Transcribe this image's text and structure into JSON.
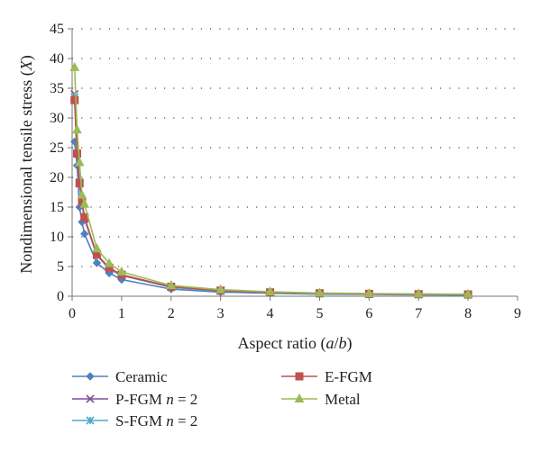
{
  "chart_data": {
    "type": "line",
    "xlabel": "Aspect ratio (a/b)",
    "ylabel": "Nondimensional tensile stress (X)",
    "xlim": [
      0,
      9
    ],
    "ylim": [
      0,
      45
    ],
    "xticks": [
      0,
      1,
      2,
      3,
      4,
      5,
      6,
      7,
      8,
      9
    ],
    "yticks": [
      0,
      5,
      10,
      15,
      20,
      25,
      30,
      35,
      40,
      45
    ],
    "grid": "horizontal dotted",
    "legend_position": "bottom",
    "x": [
      0.05,
      0.1,
      0.15,
      0.2,
      0.25,
      0.5,
      0.75,
      1,
      2,
      3,
      4,
      5,
      6,
      7,
      8
    ],
    "series": [
      {
        "name": "Ceramic",
        "color": "#4f81bd",
        "marker": "diamond",
        "values": [
          26.0,
          22.0,
          15.0,
          12.5,
          10.5,
          5.6,
          3.9,
          2.8,
          1.2,
          0.7,
          0.5,
          0.35,
          0.3,
          0.25,
          0.2
        ]
      },
      {
        "name": "P-FGM n = 2",
        "color": "#7f4f9a",
        "marker": "x",
        "values": [
          34.0,
          24.0,
          19.0,
          15.5,
          13.0,
          6.9,
          4.6,
          3.5,
          1.5,
          0.9,
          0.6,
          0.45,
          0.35,
          0.3,
          0.25
        ]
      },
      {
        "name": "S-FGM n = 2",
        "color": "#4bacc6",
        "marker": "asterisk",
        "values": [
          33.5,
          24.0,
          19.2,
          15.8,
          13.2,
          7.0,
          4.7,
          3.6,
          1.55,
          0.9,
          0.6,
          0.45,
          0.35,
          0.3,
          0.25
        ]
      },
      {
        "name": "E-FGM",
        "color": "#c0504d",
        "marker": "square",
        "values": [
          33.0,
          24.0,
          19.0,
          16.0,
          13.3,
          7.0,
          4.8,
          3.6,
          1.6,
          0.95,
          0.65,
          0.5,
          0.4,
          0.35,
          0.3
        ]
      },
      {
        "name": "Metal",
        "color": "#9bbb59",
        "marker": "triangle",
        "values": [
          38.5,
          28.0,
          22.5,
          17.0,
          15.5,
          8.0,
          5.5,
          4.1,
          1.8,
          1.1,
          0.75,
          0.55,
          0.45,
          0.4,
          0.35
        ]
      }
    ]
  }
}
